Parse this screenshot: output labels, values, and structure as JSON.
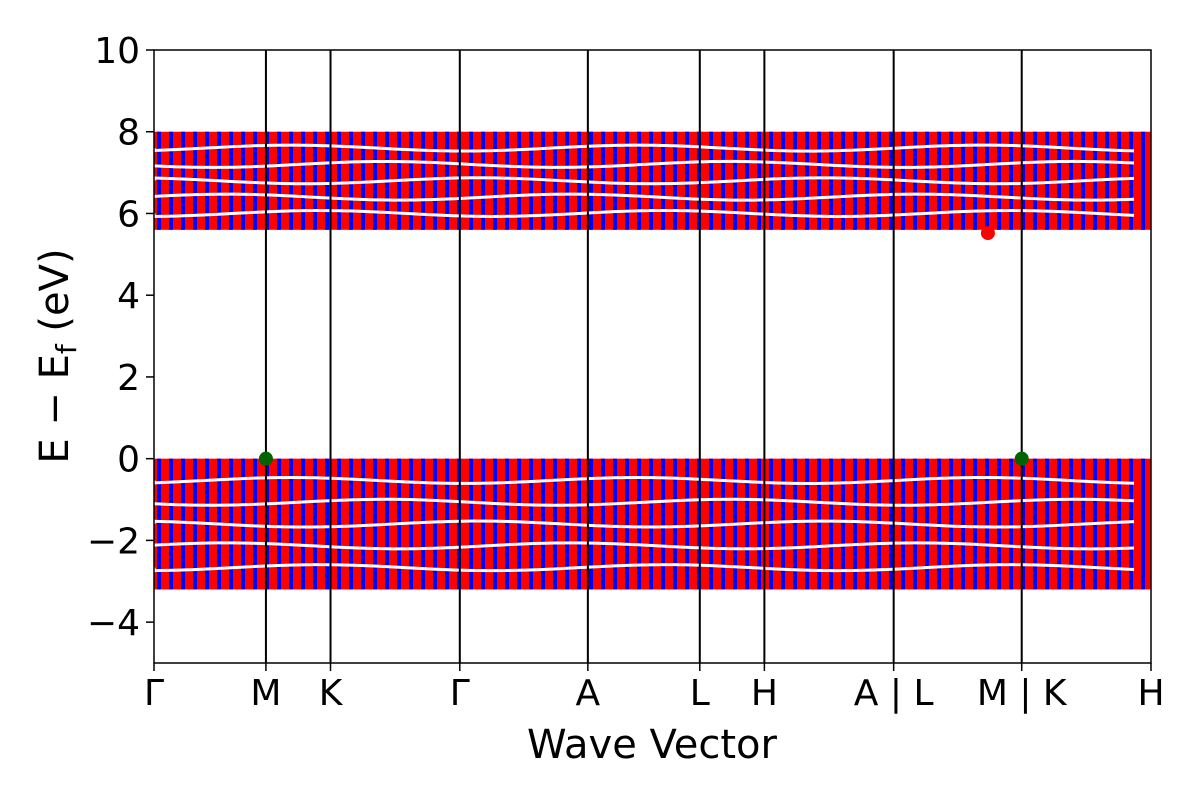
{
  "chart_data": {
    "type": "line",
    "title": "",
    "xlabel": "Wave Vector",
    "ylabel": {
      "prefix": "E − E",
      "subscript": "f",
      "suffix": " (eV)"
    },
    "ylim": [
      -5,
      10
    ],
    "yticks": [
      -4,
      -2,
      0,
      2,
      4,
      6,
      8,
      10
    ],
    "ytick_labels": [
      "−4",
      "−2",
      "0",
      "2",
      "4",
      "6",
      "8",
      "10"
    ],
    "kpath": [
      {
        "label": "Γ",
        "x": 0.0
      },
      {
        "label": "M",
        "x": 1.0
      },
      {
        "label": "K",
        "x": 1.577
      },
      {
        "label": "Γ",
        "x": 2.732
      },
      {
        "label": "A",
        "x": 3.876
      },
      {
        "label": "L",
        "x": 4.876
      },
      {
        "label": "H",
        "x": 5.453
      },
      {
        "label": "A | L",
        "x": 6.608
      },
      {
        "label": "M | K",
        "x": 7.752
      },
      {
        "label": "H",
        "x": 8.907
      }
    ],
    "xlim": [
      0,
      8.907
    ],
    "vbm_markers": [
      {
        "x": 1.0,
        "y": 0.0
      },
      {
        "x": 7.752,
        "y": 0.0
      }
    ],
    "cbm_markers": [
      {
        "x": 7.45,
        "y": 5.52
      }
    ],
    "bands": {
      "valence": {
        "bottom": -3.2,
        "top": 0.0
      },
      "conduction": {
        "bottom": 5.6,
        "top": 8.0
      }
    },
    "series": [
      {
        "name": "",
        "color": "#ff0000"
      },
      {
        "name": "",
        "color": "#0000ff"
      }
    ],
    "colors": {
      "spin_up": "#ff0000",
      "spin_down": "#0000ff",
      "extrema": "#006400",
      "axis": "#000000"
    },
    "grid": false
  }
}
